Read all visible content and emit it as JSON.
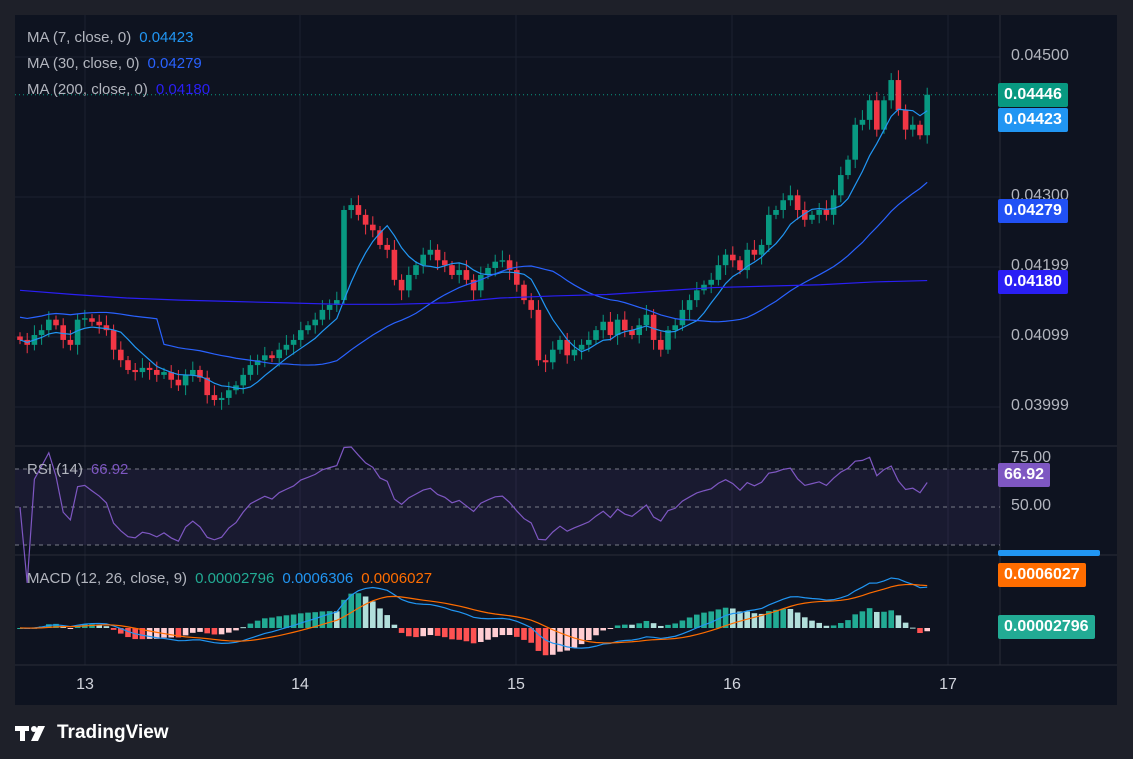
{
  "legend": {
    "ma7": {
      "label": "MA (7, close, 0)",
      "value": "0.04423"
    },
    "ma30": {
      "label": "MA (30, close, 0)",
      "value": "0.04279"
    },
    "ma200": {
      "label": "MA (200, close, 0)",
      "value": "0.04180"
    },
    "rsi": {
      "label": "RSI (14)",
      "value": "66.92"
    },
    "macd": {
      "label": "MACD (12, 26, close, 9)",
      "hist": "0.00002796",
      "macd": "0.0006306",
      "signal": "0.0006027"
    }
  },
  "badges": {
    "last": "0.04446",
    "ma7": "0.04423",
    "ma30": "0.04279",
    "ma200": "0.04180",
    "rsi": "66.92",
    "macd_signal": "0.0006027",
    "macd_hist": "0.00002796"
  },
  "colors": {
    "up": "#089981",
    "down": "#f23645",
    "ma7": "#2196f3",
    "ma30": "#2962ff",
    "ma200": "#2a1ff5",
    "rsi": "#7e57c2",
    "macd": "#2196f3",
    "signal": "#ff6d00",
    "hist_up": "#22ab94",
    "hist_down": "#ff5252"
  },
  "price_axis": [
    "0.04500",
    "0.04300",
    "0.04199",
    "0.04099",
    "0.03999"
  ],
  "rsi_axis": [
    "75.00",
    "50.00"
  ],
  "time_axis": [
    "13",
    "14",
    "15",
    "16",
    "17"
  ],
  "brand": "TradingView",
  "chart_data": {
    "type": "candlestick",
    "title": "",
    "ylim": [
      0.0396,
      0.0452
    ],
    "x_ticks": [
      "13",
      "14",
      "15",
      "16",
      "17"
    ],
    "close": [
      0.04095,
      0.04088,
      0.04102,
      0.04109,
      0.04124,
      0.04116,
      0.04095,
      0.04088,
      0.04124,
      0.04126,
      0.04121,
      0.04116,
      0.04109,
      0.04081,
      0.04066,
      0.04052,
      0.04049,
      0.04055,
      0.04052,
      0.04045,
      0.04049,
      0.04038,
      0.0403,
      0.04045,
      0.04052,
      0.04041,
      0.04016,
      0.04009,
      0.04012,
      0.04023,
      0.0403,
      0.04045,
      0.04059,
      0.04066,
      0.04073,
      0.04069,
      0.04081,
      0.04088,
      0.04095,
      0.04109,
      0.04116,
      0.04124,
      0.04138,
      0.04145,
      0.04152,
      0.04281,
      0.04288,
      0.04274,
      0.0426,
      0.04252,
      0.04231,
      0.04224,
      0.04181,
      0.04166,
      0.04188,
      0.04202,
      0.04217,
      0.04224,
      0.04209,
      0.04202,
      0.04188,
      0.04195,
      0.04181,
      0.04166,
      0.04188,
      0.04198,
      0.04207,
      0.04209,
      0.04195,
      0.04174,
      0.04152,
      0.04138,
      0.04066,
      0.04063,
      0.04081,
      0.04095,
      0.04073,
      0.04081,
      0.04088,
      0.04095,
      0.04109,
      0.04121,
      0.04102,
      0.04124,
      0.04109,
      0.04102,
      0.04116,
      0.04131,
      0.04095,
      0.04081,
      0.04109,
      0.04116,
      0.04138,
      0.04152,
      0.04166,
      0.04174,
      0.04181,
      0.04202,
      0.04217,
      0.04209,
      0.04195,
      0.04224,
      0.04217,
      0.04231,
      0.04274,
      0.04281,
      0.04295,
      0.04302,
      0.04281,
      0.04267,
      0.04274,
      0.04281,
      0.04274,
      0.04302,
      0.04331,
      0.04353,
      0.04403,
      0.0441,
      0.04438,
      0.04396,
      0.04438,
      0.04467,
      0.04424,
      0.04396,
      0.04403,
      0.04388,
      0.04446
    ],
    "ma200": [
      0.04166,
      0.0416,
      0.04155,
      0.04152,
      0.0415,
      0.04148,
      0.04146,
      0.04146,
      0.04148,
      0.04155,
      0.04158,
      0.0416,
      0.04165,
      0.0417,
      0.04172,
      0.04174,
      0.04178,
      0.0418
    ]
  }
}
